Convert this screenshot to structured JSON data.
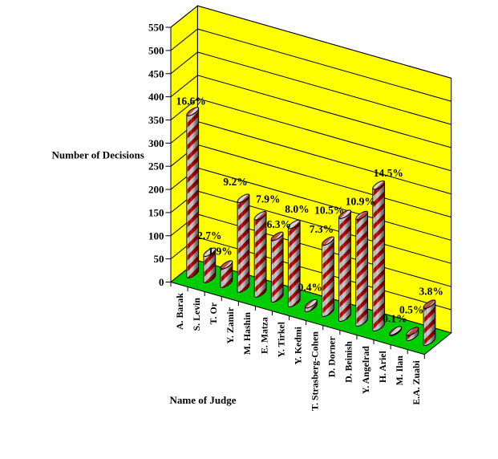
{
  "chart_data": {
    "type": "bar",
    "subtype": "3d-cylinder",
    "title": "",
    "xlabel": "Name of Judge",
    "ylabel": "Number of Decisions",
    "categories": [
      "A. Barak",
      "S. Levin",
      "T. Or",
      "Y. Zamir",
      "M. Hashin",
      "E. Matza",
      "Y. Tirkel",
      "Y. Kedmi",
      "T. Strasberg-Cohen",
      "D. Dorner",
      "D. Beinish",
      "Y. Angelrad",
      "H. Ariel",
      "M. Ilan",
      "E.A. Zuabi"
    ],
    "values": [
      350,
      57,
      40,
      194,
      167,
      133,
      169,
      8,
      154,
      222,
      230,
      306,
      2,
      11,
      80
    ],
    "point_labels": [
      "16.6%",
      "2.7%",
      "1.9%",
      "9.2%",
      "7.9%",
      "6.3%",
      "8.0%",
      "0.4%",
      "7.3%",
      "10.5%",
      "10.9%",
      "14.5%",
      "0.1%",
      "0.5%",
      "3.8%"
    ],
    "ylim": [
      0,
      550
    ],
    "ytick_step": 50,
    "ytick_labels": [
      "0",
      "50",
      "100",
      "150",
      "200",
      "250",
      "300",
      "350",
      "400",
      "450",
      "500",
      "550"
    ],
    "grid": true,
    "legend": false,
    "label_dx": [
      -2.0,
      0.0,
      -7.8,
      -10.0,
      9.7,
      2.1,
      3.7,
      -1.1,
      -8.0,
      -19.4,
      -1.8,
      12.1,
      -1.0,
      -1.2,
      2.2
    ],
    "label_gap": [
      3.6,
      10.8,
      7.3,
      10.9,
      11.2,
      5.0,
      9.5,
      11.0,
      5.1,
      -4.8,
      7.9,
      5.5,
      5.5,
      17.1,
      6.5
    ]
  },
  "style": {
    "wall_color": "#ffff00",
    "floor_color": "#00cc00",
    "stripe_red": "#b40000",
    "stripe_silver": "#c4c4c4",
    "line_color": "#000000",
    "background": "#ffffff",
    "text_color": "#000000"
  }
}
